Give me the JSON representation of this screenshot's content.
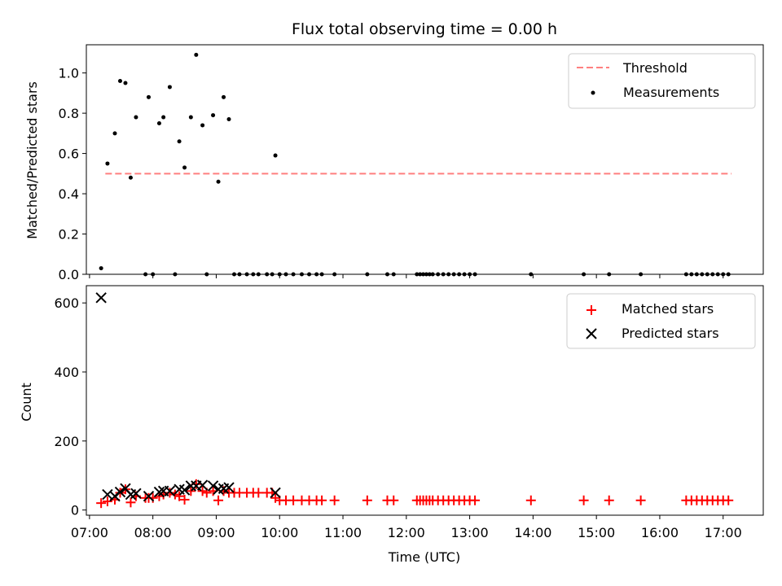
{
  "chart_data": [
    {
      "type": "scatter",
      "title": "Flux total observing time = 0.00 h",
      "xlabel": "",
      "ylabel": "Matched/Predicted stars",
      "ylim": [
        0,
        1.14
      ],
      "y_ticks": [
        "0.0",
        "0.2",
        "0.4",
        "0.6",
        "0.8",
        "1.0"
      ],
      "legend_position": "top-right",
      "threshold": {
        "name": "Threshold",
        "value": 0.5,
        "x_start": "07:15",
        "x_end": "17:08",
        "color": "#ff7f7f"
      },
      "measurements": {
        "name": "Measurements",
        "color": "#000000",
        "points": [
          [
            "07:11",
            0.03
          ],
          [
            "07:17",
            0.55
          ],
          [
            "07:24",
            0.7
          ],
          [
            "07:29",
            0.96
          ],
          [
            "07:34",
            0.95
          ],
          [
            "07:39",
            0.48
          ],
          [
            "07:44",
            0.78
          ],
          [
            "07:53",
            0.0
          ],
          [
            "07:56",
            0.88
          ],
          [
            "08:00",
            0.0
          ],
          [
            "08:06",
            0.75
          ],
          [
            "08:10",
            0.78
          ],
          [
            "08:16",
            0.93
          ],
          [
            "08:21",
            0.0
          ],
          [
            "08:25",
            0.66
          ],
          [
            "08:30",
            0.53
          ],
          [
            "08:36",
            0.78
          ],
          [
            "08:41",
            1.09
          ],
          [
            "08:47",
            0.74
          ],
          [
            "08:51",
            0.0
          ],
          [
            "08:57",
            0.79
          ],
          [
            "09:02",
            0.46
          ],
          [
            "09:07",
            0.88
          ],
          [
            "09:12",
            0.77
          ],
          [
            "09:17",
            0.0
          ],
          [
            "09:22",
            0.0
          ],
          [
            "09:29",
            0.0
          ],
          [
            "09:35",
            0.0
          ],
          [
            "09:40",
            0.0
          ],
          [
            "09:48",
            0.0
          ],
          [
            "09:53",
            0.0
          ],
          [
            "09:56",
            0.59
          ],
          [
            "10:00",
            0.0
          ],
          [
            "10:06",
            0.0
          ],
          [
            "10:13",
            0.0
          ],
          [
            "10:21",
            0.0
          ],
          [
            "10:28",
            0.0
          ],
          [
            "10:35",
            0.0
          ],
          [
            "10:40",
            0.0
          ],
          [
            "10:52",
            0.0
          ],
          [
            "11:23",
            0.0
          ],
          [
            "11:42",
            0.0
          ],
          [
            "11:48",
            0.0
          ],
          [
            "12:10",
            0.0
          ],
          [
            "12:13",
            0.0
          ],
          [
            "12:16",
            0.0
          ],
          [
            "12:19",
            0.0
          ],
          [
            "12:22",
            0.0
          ],
          [
            "12:25",
            0.0
          ],
          [
            "12:30",
            0.0
          ],
          [
            "12:35",
            0.0
          ],
          [
            "12:40",
            0.0
          ],
          [
            "12:45",
            0.0
          ],
          [
            "12:50",
            0.0
          ],
          [
            "12:55",
            0.0
          ],
          [
            "13:00",
            0.0
          ],
          [
            "13:05",
            0.0
          ],
          [
            "13:58",
            0.0
          ],
          [
            "14:48",
            0.0
          ],
          [
            "15:12",
            0.0
          ],
          [
            "15:42",
            0.0
          ],
          [
            "16:25",
            0.0
          ],
          [
            "16:30",
            0.0
          ],
          [
            "16:35",
            0.0
          ],
          [
            "16:40",
            0.0
          ],
          [
            "16:45",
            0.0
          ],
          [
            "16:50",
            0.0
          ],
          [
            "16:55",
            0.0
          ],
          [
            "17:00",
            0.0
          ],
          [
            "17:05",
            0.0
          ]
        ]
      }
    },
    {
      "type": "scatter",
      "title": "",
      "xlabel": "Time (UTC)",
      "ylabel": "Count",
      "ylim": [
        -15,
        650
      ],
      "y_ticks": [
        "0",
        "200",
        "400",
        "600"
      ],
      "x_range": [
        "06:57",
        "17:38"
      ],
      "x_ticks": [
        "07:00",
        "08:00",
        "09:00",
        "10:00",
        "11:00",
        "12:00",
        "13:00",
        "14:00",
        "15:00",
        "16:00",
        "17:00"
      ],
      "legend_position": "top-right",
      "series": [
        {
          "name": "Matched stars",
          "marker": "+",
          "color": "#ff0000",
          "points": [
            [
              "07:11",
              20
            ],
            [
              "07:17",
              25
            ],
            [
              "07:24",
              30
            ],
            [
              "07:29",
              50
            ],
            [
              "07:34",
              60
            ],
            [
              "07:39",
              22
            ],
            [
              "07:44",
              40
            ],
            [
              "07:53",
              35
            ],
            [
              "07:56",
              35
            ],
            [
              "08:00",
              35
            ],
            [
              "08:06",
              40
            ],
            [
              "08:10",
              45
            ],
            [
              "08:16",
              50
            ],
            [
              "08:21",
              45
            ],
            [
              "08:25",
              40
            ],
            [
              "08:30",
              30
            ],
            [
              "08:36",
              55
            ],
            [
              "08:41",
              75
            ],
            [
              "08:47",
              55
            ],
            [
              "08:51",
              50
            ],
            [
              "08:57",
              55
            ],
            [
              "09:02",
              28
            ],
            [
              "09:07",
              55
            ],
            [
              "09:12",
              50
            ],
            [
              "09:17",
              50
            ],
            [
              "09:22",
              50
            ],
            [
              "09:29",
              50
            ],
            [
              "09:35",
              50
            ],
            [
              "09:40",
              50
            ],
            [
              "09:48",
              50
            ],
            [
              "09:53",
              50
            ],
            [
              "09:56",
              35
            ],
            [
              "10:00",
              28
            ],
            [
              "10:06",
              28
            ],
            [
              "10:13",
              28
            ],
            [
              "10:21",
              28
            ],
            [
              "10:28",
              28
            ],
            [
              "10:35",
              28
            ],
            [
              "10:40",
              28
            ],
            [
              "10:52",
              28
            ],
            [
              "11:23",
              28
            ],
            [
              "11:42",
              28
            ],
            [
              "11:48",
              28
            ],
            [
              "12:10",
              28
            ],
            [
              "12:13",
              28
            ],
            [
              "12:16",
              28
            ],
            [
              "12:19",
              28
            ],
            [
              "12:22",
              28
            ],
            [
              "12:25",
              28
            ],
            [
              "12:30",
              28
            ],
            [
              "12:35",
              28
            ],
            [
              "12:40",
              28
            ],
            [
              "12:45",
              28
            ],
            [
              "12:50",
              28
            ],
            [
              "12:55",
              28
            ],
            [
              "13:00",
              28
            ],
            [
              "13:05",
              28
            ],
            [
              "13:58",
              28
            ],
            [
              "14:48",
              28
            ],
            [
              "15:12",
              28
            ],
            [
              "15:42",
              28
            ],
            [
              "16:25",
              28
            ],
            [
              "16:30",
              28
            ],
            [
              "16:35",
              28
            ],
            [
              "16:40",
              28
            ],
            [
              "16:45",
              28
            ],
            [
              "16:50",
              28
            ],
            [
              "16:55",
              28
            ],
            [
              "17:00",
              28
            ],
            [
              "17:05",
              28
            ]
          ]
        },
        {
          "name": "Predicted stars",
          "marker": "x",
          "color": "#000000",
          "points": [
            [
              "07:11",
              615
            ],
            [
              "07:17",
              45
            ],
            [
              "07:24",
              40
            ],
            [
              "07:29",
              52
            ],
            [
              "07:34",
              62
            ],
            [
              "07:39",
              45
            ],
            [
              "07:44",
              48
            ],
            [
              "07:56",
              40
            ],
            [
              "08:06",
              52
            ],
            [
              "08:10",
              55
            ],
            [
              "08:16",
              55
            ],
            [
              "08:25",
              60
            ],
            [
              "08:30",
              58
            ],
            [
              "08:36",
              70
            ],
            [
              "08:41",
              70
            ],
            [
              "08:47",
              72
            ],
            [
              "08:57",
              70
            ],
            [
              "09:02",
              60
            ],
            [
              "09:07",
              62
            ],
            [
              "09:12",
              65
            ],
            [
              "09:56",
              50
            ]
          ]
        }
      ]
    }
  ]
}
